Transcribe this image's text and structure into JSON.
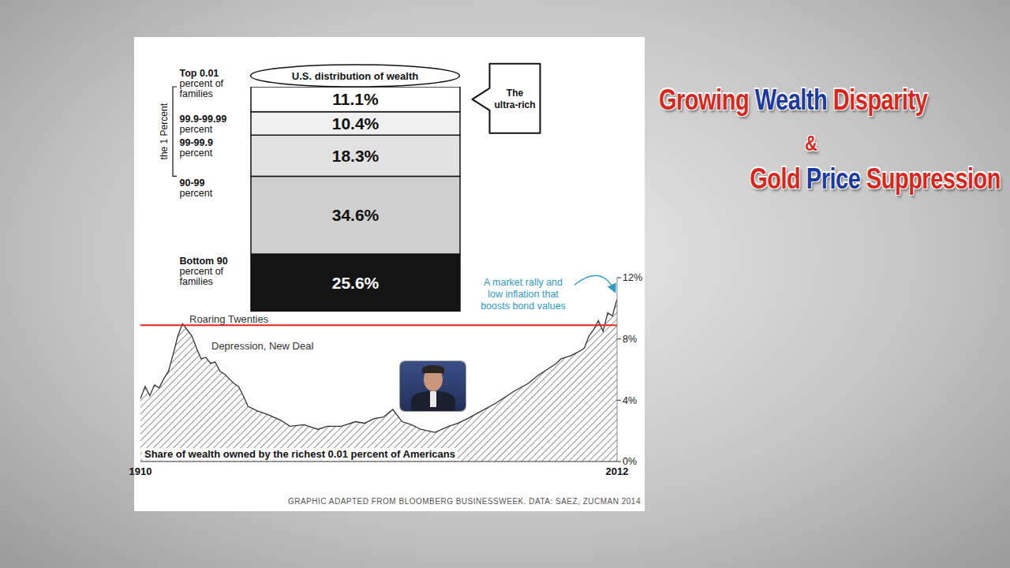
{
  "slide_title": {
    "lines": [
      [
        "Growing",
        "Wealth",
        "Disparity"
      ],
      [
        "&"
      ],
      [
        "Gold",
        "Price",
        "Suppression"
      ]
    ]
  },
  "chart_data": [
    {
      "type": "bar",
      "title": "U.S. distribution of wealth",
      "categories": [
        null
      ],
      "stacked": true,
      "data_labels": true,
      "tick_labels": false,
      "grid": false,
      "ylim": [
        0,
        100
      ],
      "series": [
        {
          "name": "Top 0.01 percent of families",
          "color": "#ffffff",
          "values": [
            11.1
          ],
          "value_labels": [
            "11.1%"
          ]
        },
        {
          "name": "99.9-99.99 percent",
          "color": "#f0f0f0",
          "values": [
            10.4
          ],
          "value_labels": [
            "10.4%"
          ]
        },
        {
          "name": "99-99.9 percent",
          "color": "#e2e2e2",
          "values": [
            18.3
          ],
          "value_labels": [
            "18.3%"
          ]
        },
        {
          "name": "90-99 percent",
          "color": "#cfcfcf",
          "values": [
            34.6
          ],
          "value_labels": [
            "34.6%"
          ]
        },
        {
          "name": "Bottom 90 percent of families",
          "color": "#141414",
          "values": [
            25.6
          ],
          "value_labels": [
            "25.6%"
          ]
        }
      ],
      "annotations": {
        "bracket": {
          "label": "the 1 Percent",
          "series": [
            "Top 0.01 percent of families",
            "99.9-99.99 percent",
            "99-99.9 percent"
          ]
        },
        "callout": {
          "label": "The ultra-rich",
          "series": "Top 0.01 percent of families"
        }
      }
    },
    {
      "type": "area",
      "title": "Share of wealth owned by the richest 0.01 percent of Americans",
      "x": [
        1910,
        1911,
        1912,
        1913,
        1914,
        1915,
        1916,
        1917,
        1918,
        1919,
        1920,
        1921,
        1922,
        1923,
        1924,
        1925,
        1926,
        1927,
        1928,
        1929,
        1930,
        1931,
        1932,
        1933,
        1935,
        1937,
        1940,
        1942,
        1945,
        1948,
        1950,
        1953,
        1956,
        1958,
        1960,
        1962,
        1964,
        1966,
        1968,
        1970,
        1973,
        1976,
        1978,
        1980,
        1983,
        1986,
        1988,
        1990,
        1993,
        1995,
        1997,
        1999,
        2000,
        2002,
        2004,
        2005,
        2006,
        2007,
        2008,
        2009,
        2010,
        2011,
        2012
      ],
      "values": [
        4.1,
        4.9,
        4.3,
        5.0,
        4.8,
        5.4,
        5.9,
        7.0,
        8.2,
        9.0,
        8.6,
        8.2,
        7.4,
        6.7,
        6.8,
        6.4,
        6.5,
        5.9,
        5.7,
        5.4,
        5.1,
        4.9,
        4.3,
        3.6,
        3.3,
        3.1,
        2.7,
        2.3,
        2.4,
        2.1,
        2.3,
        2.3,
        2.6,
        2.5,
        2.8,
        2.9,
        3.4,
        2.6,
        2.4,
        2.1,
        1.9,
        2.3,
        2.5,
        2.8,
        3.3,
        3.8,
        4.2,
        4.6,
        5.1,
        5.6,
        6.0,
        6.4,
        6.7,
        6.9,
        7.2,
        7.4,
        8.2,
        8.6,
        9.2,
        8.5,
        9.7,
        9.5,
        10.6
      ],
      "color": "#333333",
      "xlim": [
        1910,
        2012
      ],
      "xticks": [
        1910,
        2012
      ],
      "ylim": [
        0,
        12
      ],
      "yticks": [
        {
          "value": 0,
          "label": "0%"
        },
        {
          "value": 4,
          "label": "4%"
        },
        {
          "value": 8,
          "label": "8%"
        },
        {
          "value": 12,
          "label": "12%"
        }
      ],
      "grid": false,
      "reference_line": {
        "value": 8.9,
        "color": "#e8231f",
        "label": "Roaring Twenties"
      },
      "annotations": [
        "Depression, New Deal",
        "A market rally and low inflation that boosts bond values"
      ],
      "source": "GRAPHIC ADAPTED FROM BLOOMBERG BUSINESSWEEK. DATA: SAEZ, ZUCMAN 2014"
    }
  ]
}
